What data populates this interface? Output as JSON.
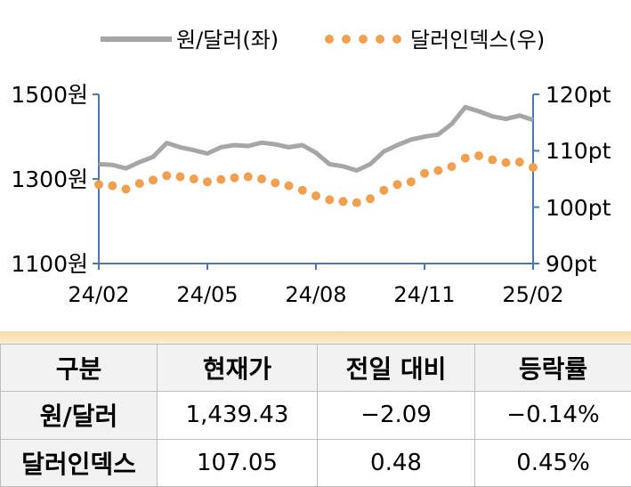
{
  "chart_data": {
    "type": "line",
    "legend": {
      "placement": "top",
      "entries": [
        "원/달러(좌)",
        "달러인덱스(우)"
      ]
    },
    "x_ticks": [
      "24/02",
      "24/05",
      "24/08",
      "24/11",
      "25/02"
    ],
    "y_left": {
      "ticks": [
        "1500원",
        "1300원",
        "1100원"
      ],
      "range": [
        1100,
        1500
      ]
    },
    "y_right": {
      "ticks": [
        "120pt",
        "110pt",
        "100pt",
        "90pt"
      ],
      "range": [
        90,
        120
      ]
    },
    "series": [
      {
        "name": "원/달러(좌)",
        "axis": "left",
        "color": "#a6a6a6",
        "style": "line",
        "x": [
          "24/02",
          "24/02",
          "24/03",
          "24/03",
          "24/03",
          "24/04",
          "24/04",
          "24/04",
          "24/05",
          "24/05",
          "24/05",
          "24/06",
          "24/06",
          "24/07",
          "24/07",
          "24/07",
          "24/08",
          "24/08",
          "24/09",
          "24/09",
          "24/10",
          "24/10",
          "24/10",
          "24/11",
          "24/11",
          "24/12",
          "24/12",
          "25/01",
          "25/01",
          "25/01",
          "25/02",
          "25/02",
          "25/02"
        ],
        "values": [
          1335,
          1333,
          1325,
          1340,
          1352,
          1385,
          1375,
          1368,
          1360,
          1375,
          1380,
          1378,
          1386,
          1382,
          1375,
          1380,
          1362,
          1335,
          1330,
          1320,
          1335,
          1365,
          1380,
          1393,
          1400,
          1405,
          1430,
          1470,
          1460,
          1448,
          1442,
          1450,
          1439.43
        ]
      },
      {
        "name": "달러인덱스(우)",
        "axis": "right",
        "color": "#f0a050",
        "style": "dots",
        "x": [
          "24/02",
          "24/02",
          "24/03",
          "24/03",
          "24/03",
          "24/04",
          "24/04",
          "24/04",
          "24/05",
          "24/05",
          "24/05",
          "24/06",
          "24/06",
          "24/07",
          "24/07",
          "24/07",
          "24/08",
          "24/08",
          "24/09",
          "24/09",
          "24/10",
          "24/10",
          "24/10",
          "24/11",
          "24/11",
          "24/12",
          "24/12",
          "25/01",
          "25/01",
          "25/01",
          "25/02",
          "25/02",
          "25/02"
        ],
        "values": [
          104.0,
          103.8,
          103.2,
          104.2,
          104.8,
          105.6,
          105.4,
          105.0,
          104.5,
          104.9,
          105.2,
          105.4,
          105.0,
          104.3,
          103.8,
          103.0,
          102.0,
          101.3,
          101.0,
          100.8,
          101.5,
          103.0,
          104.0,
          104.5,
          106.0,
          106.5,
          107.2,
          108.7,
          109.1,
          108.4,
          107.9,
          108.0,
          107.05
        ]
      }
    ]
  },
  "table": {
    "headers": [
      "구분",
      "현재가",
      "전일 대비",
      "등락률"
    ],
    "rows": [
      [
        "원/달러",
        "1,439.43",
        "−2.09",
        "−0.14%"
      ],
      [
        "달러인덱스",
        "107.05",
        "0.48",
        "0.45%"
      ]
    ]
  }
}
